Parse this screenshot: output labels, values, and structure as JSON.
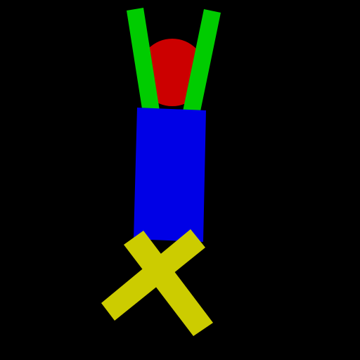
{
  "figure": {
    "background_color": "#000000",
    "head": {
      "color": "#cc0000"
    },
    "torso": {
      "color": "#0000e6"
    },
    "left_arm": {
      "color": "#00cc00"
    },
    "right_arm": {
      "color": "#00cc00"
    },
    "left_leg": {
      "color": "#cccc00"
    },
    "right_leg": {
      "color": "#cccc00"
    }
  }
}
